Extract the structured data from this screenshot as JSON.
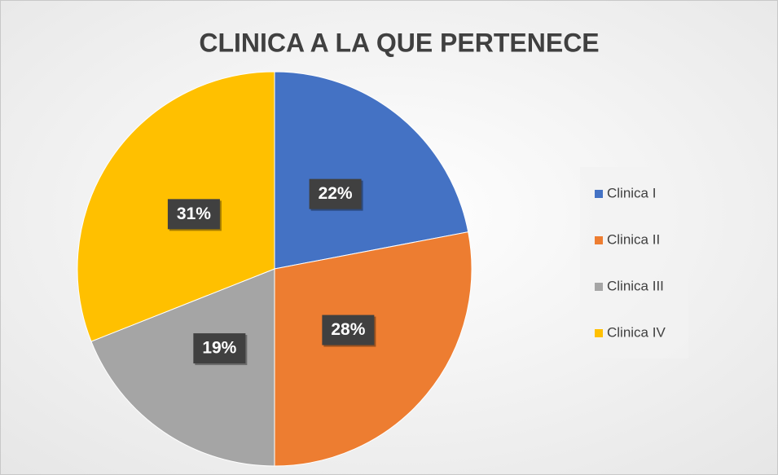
{
  "chart_data": {
    "type": "pie",
    "title": "CLINICA A LA QUE PERTENECE",
    "categories": [
      "Clinica I",
      "Clinica II",
      "Clinica III",
      "Clinica IV"
    ],
    "values": [
      22,
      28,
      19,
      31
    ],
    "value_labels": [
      "22%",
      "28%",
      "19%",
      "31%"
    ],
    "colors": [
      "#4472c4",
      "#ed7d31",
      "#a5a5a5",
      "#ffc000"
    ],
    "legend": "right"
  }
}
